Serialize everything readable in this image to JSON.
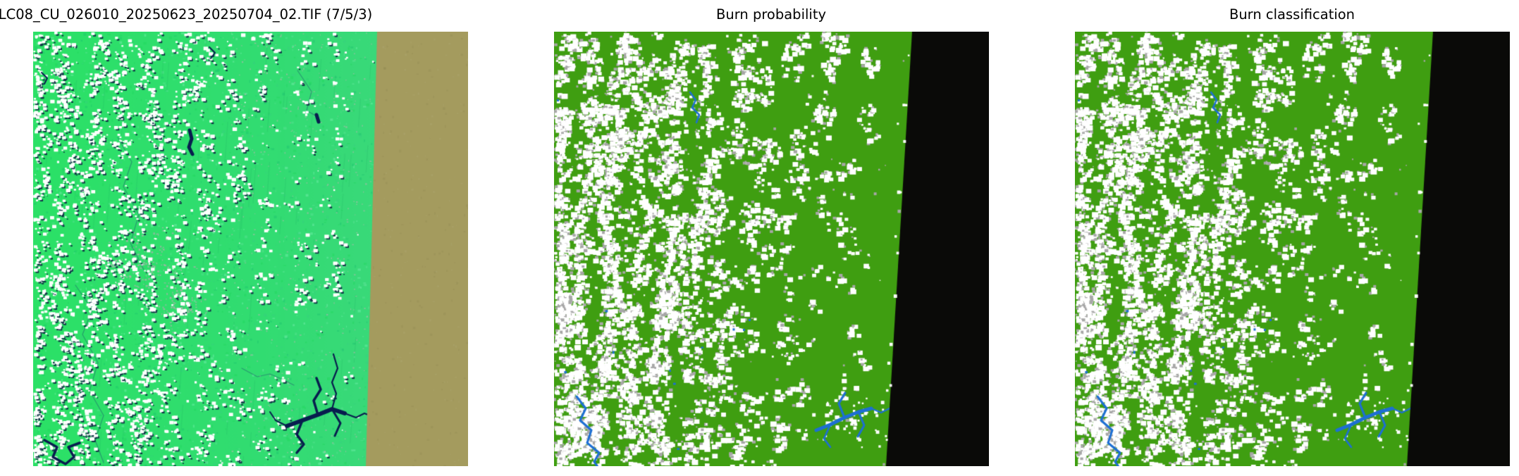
{
  "figure": {
    "background_color": "#ffffff",
    "panels": [
      {
        "id": "scene",
        "title": "LC08_CU_026010_20250623_20250704_02.TIF (7/5/3)",
        "kind": "landsat-false-color-composite"
      },
      {
        "id": "burn-probability",
        "title": "Burn probability",
        "kind": "classified-raster-map"
      },
      {
        "id": "burn-classification",
        "title": "Burn classification",
        "kind": "classified-raster-map"
      }
    ]
  },
  "palette": {
    "scene_vegetation_bright": "#2be166",
    "scene_vegetation_mid": "#32dc72",
    "scene_vegetation_soft": "#40d680",
    "scene_cloud_white": "#ffffff",
    "scene_cloud_shadow": "#0d3644",
    "scene_water_navy": "#081d4e",
    "scene_urban_pink": "#bcaab4",
    "scene_edge_tan": "#a49b5e",
    "map_land_green": "#3f9e11",
    "map_cloud_white": "#ffffff",
    "map_cloud_gray": "#a7a7a7",
    "map_water_blue": "#1d6fd3",
    "map_nodata_black": "#0a0a08"
  }
}
